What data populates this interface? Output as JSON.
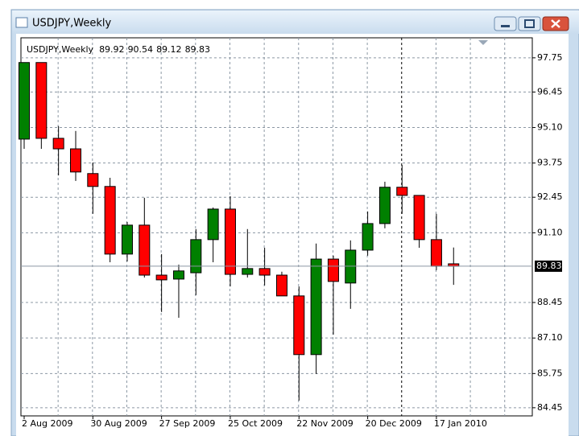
{
  "window": {
    "title": "USDJPY,Weekly"
  },
  "chart_data": {
    "type": "candlestick",
    "symbol": "USDJPY,Weekly",
    "categories": [
      "2 Aug 2009",
      null,
      null,
      null,
      "30 Aug 2009",
      null,
      null,
      null,
      "27 Sep 2009",
      null,
      null,
      null,
      "25 Oct 2009",
      null,
      null,
      null,
      "22 Nov 2009",
      null,
      null,
      null,
      "20 Dec 2009",
      null,
      null,
      null,
      "17 Jan 2010",
      null
    ],
    "open": [
      94.66,
      97.57,
      94.69,
      94.29,
      93.35,
      92.86,
      90.29,
      91.39,
      89.49,
      89.34,
      89.58,
      90.84,
      92.0,
      89.52,
      89.74,
      89.49,
      88.7,
      86.47,
      90.1,
      89.19,
      90.44,
      91.45,
      92.83,
      92.52,
      90.84,
      89.92
    ],
    "high": [
      97.57,
      97.57,
      95.15,
      94.97,
      93.77,
      93.19,
      91.51,
      92.43,
      90.29,
      89.89,
      91.24,
      92.06,
      92.49,
      91.24,
      90.53,
      89.62,
      89.06,
      90.69,
      90.23,
      90.81,
      91.91,
      93.04,
      93.68,
      92.52,
      91.82,
      90.54
    ],
    "low": [
      94.29,
      94.29,
      93.28,
      93.07,
      91.82,
      89.98,
      90.01,
      89.4,
      88.09,
      87.87,
      88.73,
      89.98,
      89.06,
      89.4,
      89.1,
      88.7,
      84.72,
      85.73,
      87.23,
      88.21,
      90.23,
      91.27,
      91.82,
      90.53,
      89.68,
      89.12
    ],
    "close": [
      97.57,
      94.69,
      94.29,
      93.41,
      92.86,
      90.29,
      91.39,
      89.49,
      89.31,
      89.65,
      90.84,
      92.0,
      89.52,
      89.74,
      89.49,
      88.7,
      86.47,
      90.1,
      89.25,
      90.44,
      91.45,
      92.83,
      92.52,
      90.84,
      89.83,
      89.83
    ],
    "ylim": [
      84.14,
      98.51
    ],
    "yticks": [
      {
        "value": 97.75,
        "label": "97.75"
      },
      {
        "value": 96.45,
        "label": "96.45"
      },
      {
        "value": 95.1,
        "label": "95.10"
      },
      {
        "value": 93.75,
        "label": "93.75"
      },
      {
        "value": 92.45,
        "label": "92.45"
      },
      {
        "value": 91.1,
        "label": "91.10"
      },
      {
        "value": 88.45,
        "label": "88.45"
      },
      {
        "value": 87.1,
        "label": "87.10"
      },
      {
        "value": 85.75,
        "label": "85.75"
      },
      {
        "value": 84.45,
        "label": "84.45"
      }
    ],
    "up_color": "#008000",
    "down_color": "#ff0000",
    "grid": true
  }
}
